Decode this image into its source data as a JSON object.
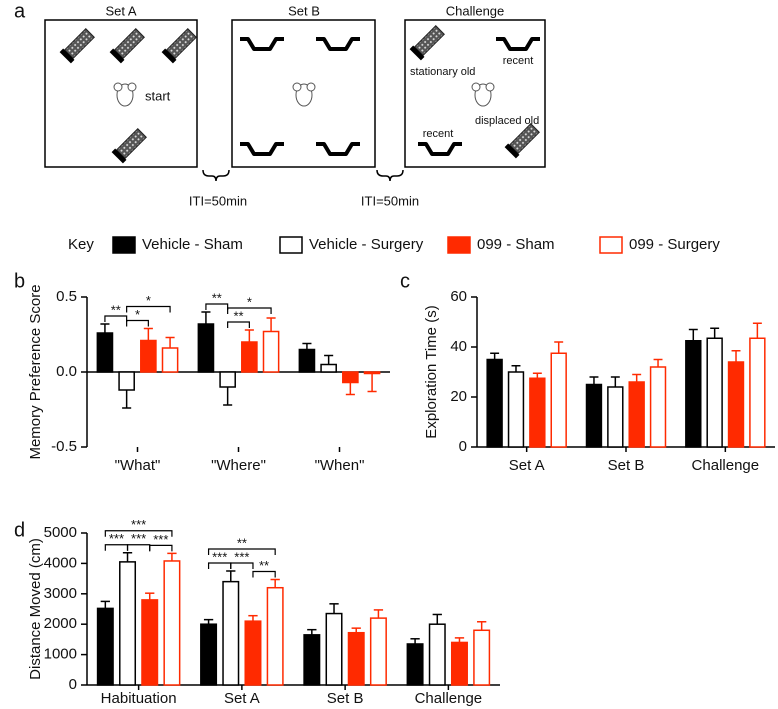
{
  "diagram": {
    "letter": "a",
    "panels": [
      "Set A",
      "Set B",
      "Challenge"
    ],
    "iti": [
      "ITI=50min",
      "ITI=50min"
    ],
    "labels": {
      "start": "start",
      "stationary": "stationary old",
      "recent_top": "recent",
      "recent_bottom": "recent",
      "displaced": "displaced old"
    }
  },
  "key": {
    "label": "Key",
    "series": [
      {
        "name": "Vehicle - Sham",
        "color": "#000000",
        "filled": true
      },
      {
        "name": "Vehicle - Surgery",
        "color": "#000000",
        "filled": false
      },
      {
        "name": "099 - Sham",
        "color": "#ff2a00",
        "filled": true
      },
      {
        "name": "099 - Surgery",
        "color": "#ff2a00",
        "filled": false
      }
    ]
  },
  "chart_data": [
    {
      "type": "bar",
      "panel": "b",
      "y_label": "Memory Preference Score",
      "categories": [
        "\"What\"",
        "\"Where\"",
        "\"When\""
      ],
      "series": [
        {
          "values": [
            0.26,
            0.32,
            0.15
          ],
          "errors": [
            0.06,
            0.08,
            0.04
          ]
        },
        {
          "values": [
            -0.12,
            -0.1,
            0.05
          ],
          "errors": [
            0.12,
            0.12,
            0.06
          ]
        },
        {
          "values": [
            0.21,
            0.2,
            -0.07
          ],
          "errors": [
            0.08,
            0.08,
            0.08
          ]
        },
        {
          "values": [
            0.16,
            0.27,
            -0.01
          ],
          "errors": [
            0.07,
            0.09,
            0.12
          ]
        }
      ],
      "ylim": [
        -0.5,
        0.5
      ],
      "yticks": [
        -0.5,
        {
          "value": 0,
          "label": "0.0"
        },
        0.5
      ],
      "comparisons": [
        {
          "category": 0,
          "from": 0,
          "to": 1,
          "label": "**"
        },
        {
          "category": 0,
          "from": 1,
          "to": 2,
          "label": "*"
        },
        {
          "category": 0,
          "from": 1,
          "to": 3,
          "label": "*"
        },
        {
          "category": 1,
          "from": 0,
          "to": 1,
          "label": "**"
        },
        {
          "category": 1,
          "from": 1,
          "to": 2,
          "label": "**"
        },
        {
          "category": 1,
          "from": 1,
          "to": 3,
          "label": "*"
        }
      ]
    },
    {
      "type": "bar",
      "panel": "c",
      "y_label": "Exploration Time (s)",
      "categories": [
        "Set A",
        "Set B",
        "Challenge"
      ],
      "series": [
        {
          "values": [
            35,
            25,
            42.5
          ],
          "errors": [
            2.5,
            3,
            4.5
          ]
        },
        {
          "values": [
            30,
            24,
            43.5
          ],
          "errors": [
            2.5,
            4,
            4
          ]
        },
        {
          "values": [
            27.5,
            26,
            34
          ],
          "errors": [
            2,
            3,
            4.5
          ]
        },
        {
          "values": [
            37.5,
            32,
            43.5
          ],
          "errors": [
            4.5,
            3,
            6
          ]
        }
      ],
      "ylim": [
        0,
        60
      ],
      "yticks": [
        0,
        20,
        40,
        60
      ],
      "comparisons": []
    },
    {
      "type": "bar",
      "panel": "d",
      "y_label": "Distance Moved (cm)",
      "categories": [
        "Habituation",
        "Set A",
        "Set B",
        "Challenge"
      ],
      "series": [
        {
          "values": [
            2520,
            2000,
            1650,
            1350
          ],
          "errors": [
            230,
            150,
            170,
            170
          ]
        },
        {
          "values": [
            4050,
            3400,
            2350,
            2000
          ],
          "errors": [
            300,
            350,
            320,
            320
          ]
        },
        {
          "values": [
            2800,
            2100,
            1720,
            1400
          ],
          "errors": [
            220,
            180,
            150,
            150
          ]
        },
        {
          "values": [
            4080,
            3200,
            2200,
            1800
          ],
          "errors": [
            250,
            270,
            270,
            280
          ]
        }
      ],
      "ylim": [
        0,
        5000
      ],
      "yticks": [
        0,
        1000,
        2000,
        3000,
        4000,
        5000
      ],
      "comparisons": [
        {
          "category": 0,
          "from": 0,
          "to": 1,
          "label": "***"
        },
        {
          "category": 0,
          "from": 1,
          "to": 2,
          "label": "***"
        },
        {
          "category": 0,
          "from": 2,
          "to": 3,
          "label": "***"
        },
        {
          "category": 0,
          "from": 0,
          "to": 3,
          "label": "***"
        },
        {
          "category": 1,
          "from": 0,
          "to": 1,
          "label": "***"
        },
        {
          "category": 1,
          "from": 1,
          "to": 2,
          "label": "***"
        },
        {
          "category": 1,
          "from": 2,
          "to": 3,
          "label": "**"
        },
        {
          "category": 1,
          "from": 0,
          "to": 3,
          "label": "**"
        }
      ]
    }
  ]
}
